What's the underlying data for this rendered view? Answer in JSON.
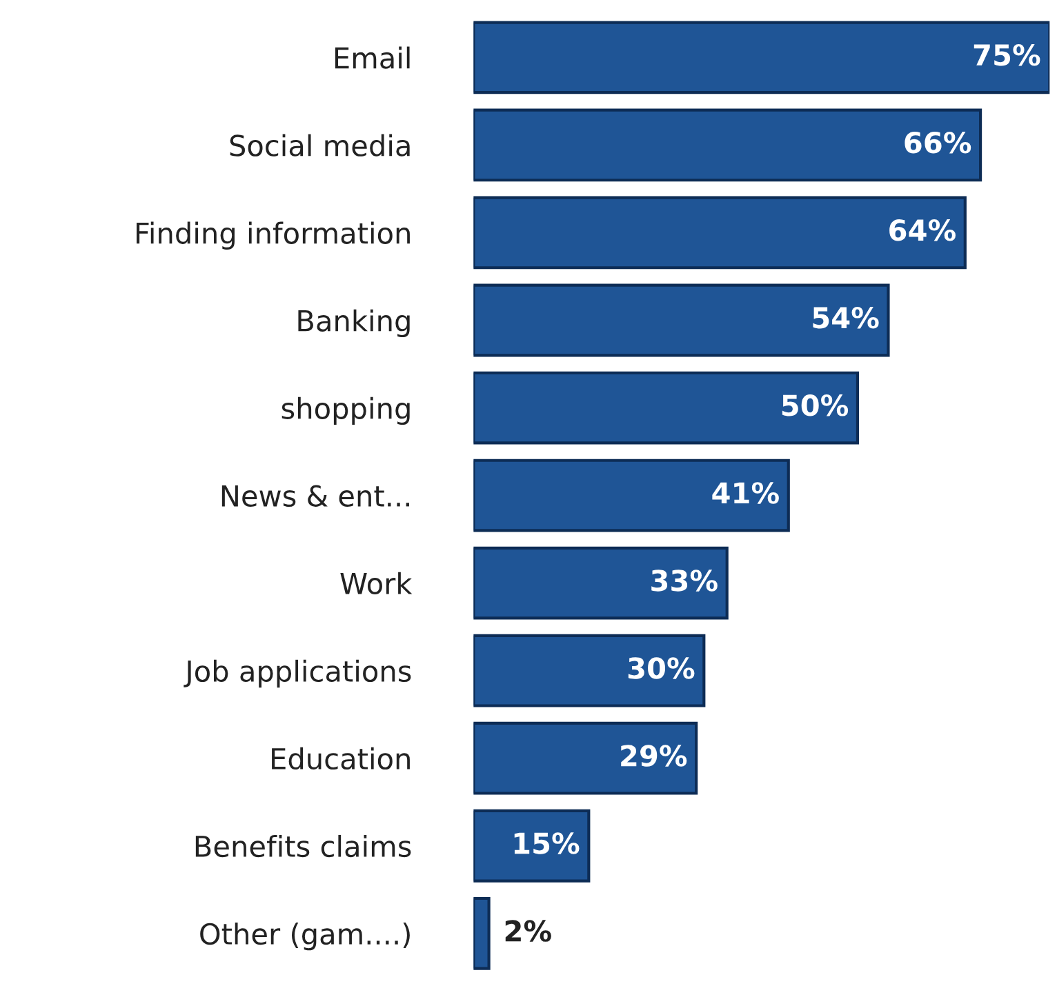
{
  "chart_data": {
    "type": "bar",
    "orientation": "horizontal",
    "categories": [
      "Email",
      "Social media",
      "Finding information",
      "Banking",
      "shopping",
      "News & ent...",
      "Work",
      "Job applications",
      "Education",
      "Benefits claims",
      "Other (gam....)"
    ],
    "values": [
      75,
      66,
      64,
      54,
      50,
      41,
      33,
      30,
      29,
      15,
      2
    ],
    "value_labels": [
      "75%",
      "66%",
      "64%",
      "54%",
      "50%",
      "41%",
      "33%",
      "30%",
      "29%",
      "15%",
      "2%"
    ],
    "color": "#1f5596",
    "grid": false,
    "legend": false
  }
}
